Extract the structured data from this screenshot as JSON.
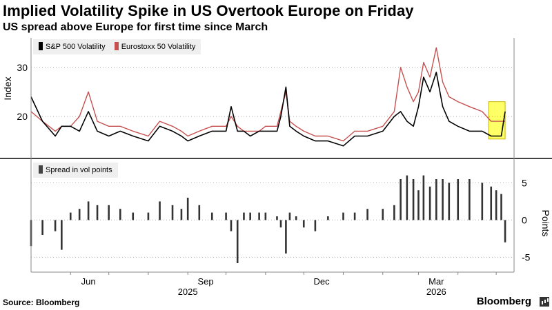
{
  "header": {
    "title": "Implied Volatility Spike in US Overtook Europe on Friday",
    "subtitle": "US spread above Europe for first time since March"
  },
  "footer": {
    "source": "Source: Bloomberg",
    "brand": "Bloomberg"
  },
  "chart_data": [
    {
      "type": "line",
      "ylabel": "Index",
      "yticks": [
        20,
        30
      ],
      "ylim": [
        12,
        36
      ],
      "legend": {
        "placement": "top-left"
      },
      "highlight": {
        "from": "2026-04-25",
        "to": "2026-05-08",
        "color": "#ffff33"
      },
      "x": [
        "2025-05-01",
        "2025-05-10",
        "2025-05-20",
        "2025-05-25",
        "2025-06-01",
        "2025-06-08",
        "2025-06-15",
        "2025-06-22",
        "2025-07-01",
        "2025-07-10",
        "2025-07-20",
        "2025-08-01",
        "2025-08-10",
        "2025-08-20",
        "2025-08-27",
        "2025-09-01",
        "2025-09-10",
        "2025-09-20",
        "2025-10-01",
        "2025-10-05",
        "2025-10-10",
        "2025-10-15",
        "2025-10-20",
        "2025-10-27",
        "2025-11-01",
        "2025-11-10",
        "2025-11-13",
        "2025-11-17",
        "2025-11-20",
        "2025-11-25",
        "2025-12-01",
        "2025-12-10",
        "2025-12-20",
        "2026-01-01",
        "2026-01-10",
        "2026-01-20",
        "2026-02-01",
        "2026-02-10",
        "2026-02-15",
        "2026-02-20",
        "2026-02-25",
        "2026-03-01",
        "2026-03-05",
        "2026-03-10",
        "2026-03-15",
        "2026-03-20",
        "2026-03-25",
        "2026-04-01",
        "2026-04-10",
        "2026-04-20",
        "2026-04-27",
        "2026-05-01",
        "2026-05-05",
        "2026-05-08"
      ],
      "series": [
        {
          "name": "S&P 500 Volatility",
          "color": "#000000",
          "values": [
            24,
            19,
            16,
            18,
            18,
            17,
            21,
            17,
            16,
            17,
            16,
            15,
            18,
            17,
            16,
            15,
            16,
            17,
            17,
            22,
            17,
            17,
            16,
            17,
            17,
            17,
            20,
            26,
            18,
            17,
            16,
            15,
            15,
            14,
            16,
            16,
            17,
            20,
            21,
            19,
            18,
            22,
            28,
            25,
            29,
            22,
            19,
            18,
            17,
            17,
            16,
            16,
            16,
            21
          ]
        },
        {
          "name": "Eurostoxx 50 Volatility",
          "color": "#c6504f",
          "values": [
            21,
            19,
            17,
            18,
            18,
            20,
            25,
            19,
            18,
            18,
            17,
            16,
            19,
            18,
            17,
            16,
            17,
            18,
            18,
            20,
            18,
            17,
            17,
            17,
            18,
            18,
            21,
            25,
            19,
            18,
            17,
            16,
            16,
            15,
            17,
            17,
            18,
            21,
            30,
            26,
            23,
            25,
            31,
            28,
            34,
            27,
            24,
            23,
            22,
            21,
            19,
            19,
            19,
            19
          ]
        }
      ]
    },
    {
      "type": "bar",
      "ylabel": "Points",
      "yticks": [
        -5,
        0,
        5
      ],
      "ylim": [
        -7,
        8
      ],
      "xticks": [
        "Jun",
        "Sep",
        "Dec",
        "Mar"
      ],
      "years": [
        "2025",
        "2026"
      ],
      "legend": {
        "placement": "top-left"
      },
      "series": [
        {
          "name": "Spread in vol points",
          "color": "#333333",
          "x": [
            "2025-05-01",
            "2025-05-10",
            "2025-05-20",
            "2025-05-25",
            "2025-06-01",
            "2025-06-08",
            "2025-06-15",
            "2025-06-22",
            "2025-07-01",
            "2025-07-10",
            "2025-07-20",
            "2025-08-01",
            "2025-08-10",
            "2025-08-20",
            "2025-08-27",
            "2025-09-01",
            "2025-09-10",
            "2025-09-20",
            "2025-10-01",
            "2025-10-05",
            "2025-10-10",
            "2025-10-15",
            "2025-10-20",
            "2025-10-27",
            "2025-11-01",
            "2025-11-10",
            "2025-11-13",
            "2025-11-17",
            "2025-11-20",
            "2025-11-25",
            "2025-12-01",
            "2025-12-10",
            "2025-12-20",
            "2026-01-01",
            "2026-01-10",
            "2026-01-20",
            "2026-02-01",
            "2026-02-10",
            "2026-02-15",
            "2026-02-20",
            "2026-02-25",
            "2026-03-01",
            "2026-03-05",
            "2026-03-10",
            "2026-03-15",
            "2026-03-20",
            "2026-03-25",
            "2026-04-01",
            "2026-04-10",
            "2026-04-20",
            "2026-04-27",
            "2026-05-01",
            "2026-05-05",
            "2026-05-08"
          ],
          "values": [
            -3.5,
            -2,
            -1.5,
            -4,
            1,
            1.5,
            2.5,
            2,
            2,
            1.5,
            1,
            1,
            2.5,
            2,
            1.5,
            3,
            2,
            1,
            1,
            -1.5,
            -5.8,
            1,
            1,
            1,
            1,
            0.5,
            -1,
            -4.5,
            1,
            0.5,
            -1,
            -1.5,
            0.5,
            1,
            1,
            1.5,
            1.5,
            2,
            5.5,
            6,
            5.5,
            4,
            6,
            4.5,
            5.5,
            5.5,
            5,
            5.5,
            5.5,
            5,
            4.5,
            4,
            3.5,
            -3
          ]
        }
      ]
    }
  ]
}
